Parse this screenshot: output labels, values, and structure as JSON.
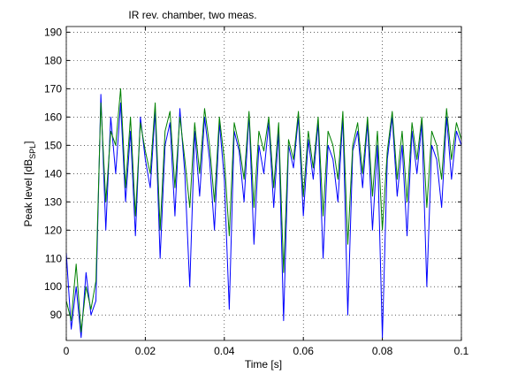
{
  "chart_data": {
    "type": "line",
    "title": "IR rev. chamber, two meas.",
    "xlabel": "Time [s]",
    "ylabel": {
      "text": "Peak level [dB",
      "subscript": "SPL",
      "suffix": "]"
    },
    "x": [
      0,
      0.00125,
      0.0025,
      0.00375,
      0.005,
      0.00625,
      0.0075,
      0.00875,
      0.01,
      0.01125,
      0.0125,
      0.01375,
      0.015,
      0.01625,
      0.0175,
      0.01875,
      0.02,
      0.02125,
      0.0225,
      0.02375,
      0.025,
      0.02625,
      0.0275,
      0.02875,
      0.03,
      0.03125,
      0.0325,
      0.03375,
      0.035,
      0.03625,
      0.0375,
      0.03875,
      0.04,
      0.04125,
      0.0425,
      0.04375,
      0.045,
      0.04625,
      0.0475,
      0.04875,
      0.05,
      0.05125,
      0.0525,
      0.05375,
      0.055,
      0.05625,
      0.0575,
      0.05875,
      0.06,
      0.06125,
      0.0625,
      0.06375,
      0.065,
      0.06625,
      0.0675,
      0.06875,
      0.07,
      0.07125,
      0.0725,
      0.07375,
      0.075,
      0.07625,
      0.0775,
      0.07875,
      0.08,
      0.08125,
      0.0825,
      0.08375,
      0.085,
      0.08625,
      0.0875,
      0.08875,
      0.09,
      0.09125,
      0.0925,
      0.09375,
      0.095,
      0.09625,
      0.0975,
      0.09875,
      0.1
    ],
    "series": [
      {
        "color": "#0000ff",
        "values": [
          112,
          85,
          100,
          82,
          105,
          90,
          95,
          168,
          120,
          160,
          140,
          165,
          130,
          155,
          118,
          160,
          145,
          135,
          162,
          110,
          150,
          158,
          125,
          163,
          140,
          100,
          155,
          132,
          160,
          145,
          120,
          158,
          138,
          92,
          155,
          148,
          130,
          161,
          115,
          150,
          140,
          158,
          128,
          155,
          88,
          150,
          142,
          160,
          125,
          152,
          138,
          158,
          110,
          150,
          145,
          130,
          160,
          90,
          148,
          155,
          135,
          158,
          120,
          150,
          82,
          145,
          160,
          132,
          150,
          118,
          155,
          140,
          158,
          100,
          150,
          145,
          128,
          160,
          138,
          155,
          150
        ]
      },
      {
        "color": "#008000",
        "values": [
          95,
          88,
          108,
          84,
          100,
          92,
          102,
          165,
          130,
          155,
          150,
          170,
          135,
          160,
          125,
          158,
          148,
          140,
          165,
          120,
          155,
          162,
          135,
          160,
          145,
          128,
          158,
          140,
          163,
          150,
          130,
          160,
          145,
          118,
          158,
          150,
          138,
          162,
          128,
          155,
          148,
          160,
          135,
          158,
          105,
          152,
          145,
          162,
          132,
          155,
          142,
          160,
          125,
          155,
          150,
          138,
          162,
          115,
          150,
          158,
          140,
          160,
          132,
          155,
          120,
          148,
          162,
          138,
          155,
          130,
          158,
          145,
          160,
          128,
          155,
          150,
          138,
          163,
          145,
          158,
          152
        ]
      }
    ],
    "xlim": [
      0,
      0.1
    ],
    "xticks": [
      0,
      0.02,
      0.04,
      0.06,
      0.08,
      0.1
    ],
    "ylim": [
      81,
      192
    ],
    "yticks": [
      90,
      100,
      110,
      120,
      130,
      140,
      150,
      160,
      170,
      180,
      190
    ],
    "grid": true
  }
}
